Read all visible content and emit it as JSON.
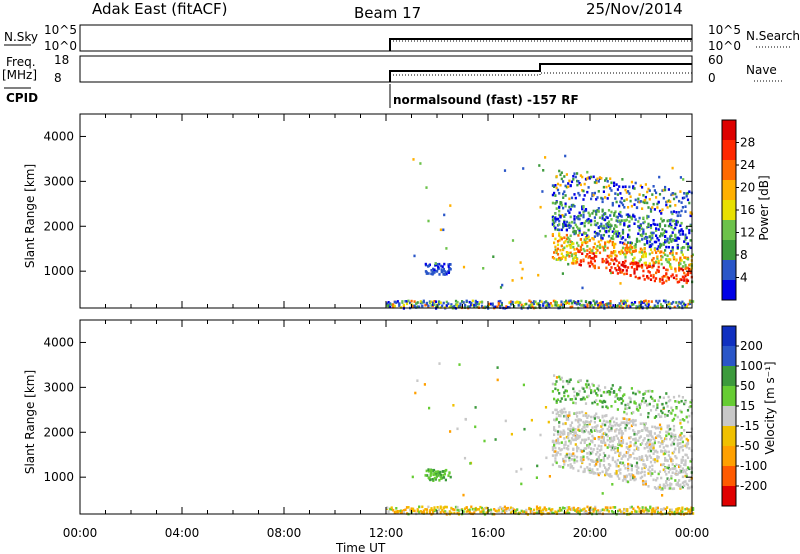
{
  "header": {
    "station": "Adak East (fitACF)",
    "beam": "Beam 17",
    "date": "25/Nov/2014"
  },
  "summary_panels": {
    "nsky_label": "N.Sky",
    "nsky_ticks": [
      "10^5",
      "10^0"
    ],
    "nsearch_label": "N.Search",
    "nsearch_ticks": [
      "10^5",
      "10^0"
    ],
    "freq_label": "Freq.",
    "freq_unit": "[MHz]",
    "freq_ticks": [
      "18",
      "8"
    ],
    "nave_label": "Nave",
    "nave_ticks": [
      "60",
      "0"
    ],
    "cpid_label": "CPID",
    "cpid_text": "normalsound (fast) -157 RF"
  },
  "colors": {
    "power": [
      "#0000e6",
      "#2a56c8",
      "#3c9a3c",
      "#6cc24a",
      "#e8e000",
      "#ffb000",
      "#ff6a00",
      "#ff2800",
      "#dd0000"
    ],
    "velocity": [
      "#e00000",
      "#ff5a00",
      "#ffa000",
      "#f0c000",
      "#c8c8c8",
      "#66cc33",
      "#3c9a3c",
      "#2a56c8",
      "#1030c0"
    ]
  },
  "chart_data": [
    {
      "type": "heatmap",
      "title": "",
      "quantity": "Power",
      "xlabel": "Time UT",
      "ylabel": "Slant Range [km]",
      "x_ticks": [
        "00:00",
        "04:00",
        "08:00",
        "12:00",
        "16:00",
        "20:00",
        "00:00"
      ],
      "xlim_hours": [
        0,
        24
      ],
      "y_ticks": [
        1000,
        2000,
        3000,
        4000
      ],
      "ylim_km": [
        180,
        4500
      ],
      "colorbar_label": "Power [dB]",
      "colorbar_ticks": [
        "4",
        "8",
        "12",
        "16",
        "20",
        "24",
        "28"
      ],
      "colorbar_range": [
        0,
        32
      ],
      "data_start_hour": 12,
      "features": [
        {
          "region": "ground scatter band",
          "hours": [
            12,
            24
          ],
          "range_km": [
            200,
            350
          ],
          "level": "low-mid"
        },
        {
          "region": "patch",
          "hours": [
            13.5,
            14.5
          ],
          "range_km": [
            950,
            1200
          ],
          "level": "low"
        },
        {
          "region": "strong echo",
          "hours": [
            20,
            24
          ],
          "range_km": [
            700,
            1200
          ],
          "level": "high"
        }
      ]
    },
    {
      "type": "heatmap",
      "title": "",
      "quantity": "Velocity",
      "xlabel": "Time UT",
      "ylabel": "Slant Range [km]",
      "x_ticks": [
        "00:00",
        "04:00",
        "08:00",
        "12:00",
        "16:00",
        "20:00",
        "00:00"
      ],
      "xlim_hours": [
        0,
        24
      ],
      "y_ticks": [
        1000,
        2000,
        3000,
        4000
      ],
      "ylim_km": [
        180,
        4500
      ],
      "colorbar_label": "Velocity [m s⁻¹]",
      "colorbar_ticks": [
        "200",
        "100",
        "50",
        "15",
        "-15",
        "-50",
        "-100",
        "-200"
      ],
      "colorbar_range": [
        -250,
        250
      ],
      "data_start_hour": 12,
      "features": [
        {
          "region": "ground scatter",
          "hours": [
            18.5,
            24
          ],
          "range_km": [
            700,
            2000
          ],
          "velocity": "near zero (grey)"
        },
        {
          "region": "patch",
          "hours": [
            13.5,
            14.5
          ],
          "range_km": [
            950,
            1200
          ],
          "velocity": "positive (green)"
        }
      ]
    }
  ]
}
